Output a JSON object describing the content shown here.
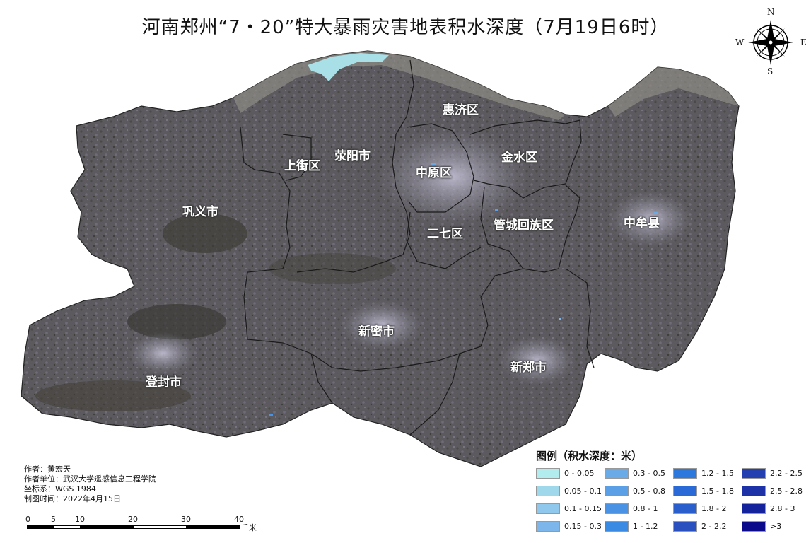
{
  "title": "河南郑州“7・20”特大暴雨灾害地表积水深度（7月19日6时）",
  "colors": {
    "satellite_base": "#5e5a60",
    "satellite_dark": "#3f3f3b",
    "satellite_light": "#8b8898",
    "urban": "#b6b3cc",
    "river": "#a9e0e8",
    "boundary": "#1a1a1a"
  },
  "compass": {
    "n": "N",
    "s": "S",
    "e": "E",
    "w": "W"
  },
  "districts": [
    {
      "name": "惠济区"
    },
    {
      "name": "上街区"
    },
    {
      "name": "荥阳市"
    },
    {
      "name": "中原区"
    },
    {
      "name": "金水区"
    },
    {
      "name": "巩义市"
    },
    {
      "name": "二七区"
    },
    {
      "name": "管城回族区"
    },
    {
      "name": "中牟县"
    },
    {
      "name": "新密市"
    },
    {
      "name": "登封市"
    },
    {
      "name": "新郑市"
    }
  ],
  "legend": {
    "title": "图例（积水深度：米）",
    "items": [
      {
        "label": "0 - 0.05",
        "color": "#b2ecee"
      },
      {
        "label": "0.05 - 0.1",
        "color": "#9fd8ea"
      },
      {
        "label": "0.1 - 0.15",
        "color": "#8fc8ec"
      },
      {
        "label": "0.15 - 0.3",
        "color": "#7cb6ea"
      },
      {
        "label": "0.3 - 0.5",
        "color": "#6aaae6"
      },
      {
        "label": "0.5 - 0.8",
        "color": "#5ba0e6"
      },
      {
        "label": "0.8 - 1",
        "color": "#4992e4"
      },
      {
        "label": "1 - 1.2",
        "color": "#3a8ae4"
      },
      {
        "label": "1.2 - 1.5",
        "color": "#2c78dc"
      },
      {
        "label": "1.5 - 1.8",
        "color": "#2a6ad6"
      },
      {
        "label": "1.8 - 2",
        "color": "#2a5ecc"
      },
      {
        "label": "2 - 2.2",
        "color": "#2a50c0"
      },
      {
        "label": "2.2 - 2.5",
        "color": "#2440b0"
      },
      {
        "label": "2.5 - 2.8",
        "color": "#1c32a6"
      },
      {
        "label": "2.8 - 3",
        "color": "#14229c"
      },
      {
        "label": ">3",
        "color": "#0a0a8a"
      }
    ]
  },
  "meta": {
    "author": "作者：黄宏天",
    "unit": "作者单位：武汉大学遥感信息工程学院",
    "crs": "坐标系：WGS 1984",
    "date": "制图时间：2022年4月15日"
  },
  "scale": {
    "ticks": [
      "0",
      "5",
      "10",
      "20",
      "30",
      "40"
    ],
    "unit": "千米"
  }
}
